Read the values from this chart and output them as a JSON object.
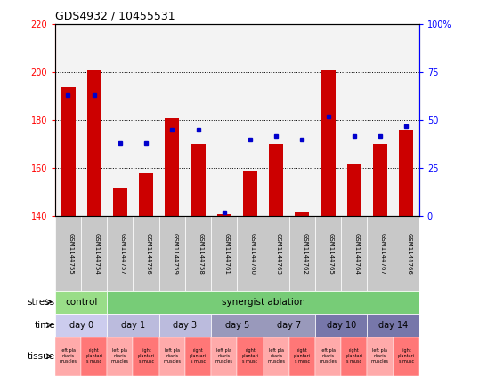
{
  "title": "GDS4932 / 10455531",
  "samples": [
    "GSM1144755",
    "GSM1144754",
    "GSM1144757",
    "GSM1144756",
    "GSM1144759",
    "GSM1144758",
    "GSM1144761",
    "GSM1144760",
    "GSM1144763",
    "GSM1144762",
    "GSM1144765",
    "GSM1144764",
    "GSM1144767",
    "GSM1144766"
  ],
  "counts": [
    194,
    201,
    152,
    158,
    181,
    170,
    141,
    159,
    170,
    142,
    201,
    162,
    170,
    176
  ],
  "percentiles": [
    63,
    63,
    38,
    38,
    45,
    45,
    2,
    40,
    42,
    40,
    52,
    42,
    42,
    47
  ],
  "ylim_left": [
    140,
    220
  ],
  "ylim_right": [
    0,
    100
  ],
  "yticks_left": [
    140,
    160,
    180,
    200,
    220
  ],
  "yticks_right": [
    0,
    25,
    50,
    75,
    100
  ],
  "bar_color": "#CC0000",
  "dot_color": "#0000CC",
  "bar_bottom": 140,
  "stress_regions": [
    [
      0,
      2,
      "#99DD88",
      "control"
    ],
    [
      2,
      14,
      "#77CC77",
      "synergist ablation"
    ]
  ],
  "time_regions": [
    [
      0,
      2,
      "#CCCCEE",
      "day 0"
    ],
    [
      2,
      4,
      "#BBBBDD",
      "day 1"
    ],
    [
      4,
      6,
      "#BBBBDD",
      "day 3"
    ],
    [
      6,
      8,
      "#9999BB",
      "day 5"
    ],
    [
      8,
      10,
      "#9999BB",
      "day 7"
    ],
    [
      10,
      12,
      "#7777AA",
      "day 10"
    ],
    [
      12,
      14,
      "#7777AA",
      "day 14"
    ]
  ],
  "tissue_left_color": "#FFAAAA",
  "tissue_right_color": "#FF7777",
  "tissue_left_lines": [
    "left pla",
    "ntaris",
    "muscles"
  ],
  "tissue_right_lines": [
    "right",
    "plantari",
    "s musc"
  ],
  "row_label_color": "#000000",
  "background_color": "#FFFFFF",
  "grid_color": "#000000",
  "xtick_bg_color": "#CCCCCC"
}
